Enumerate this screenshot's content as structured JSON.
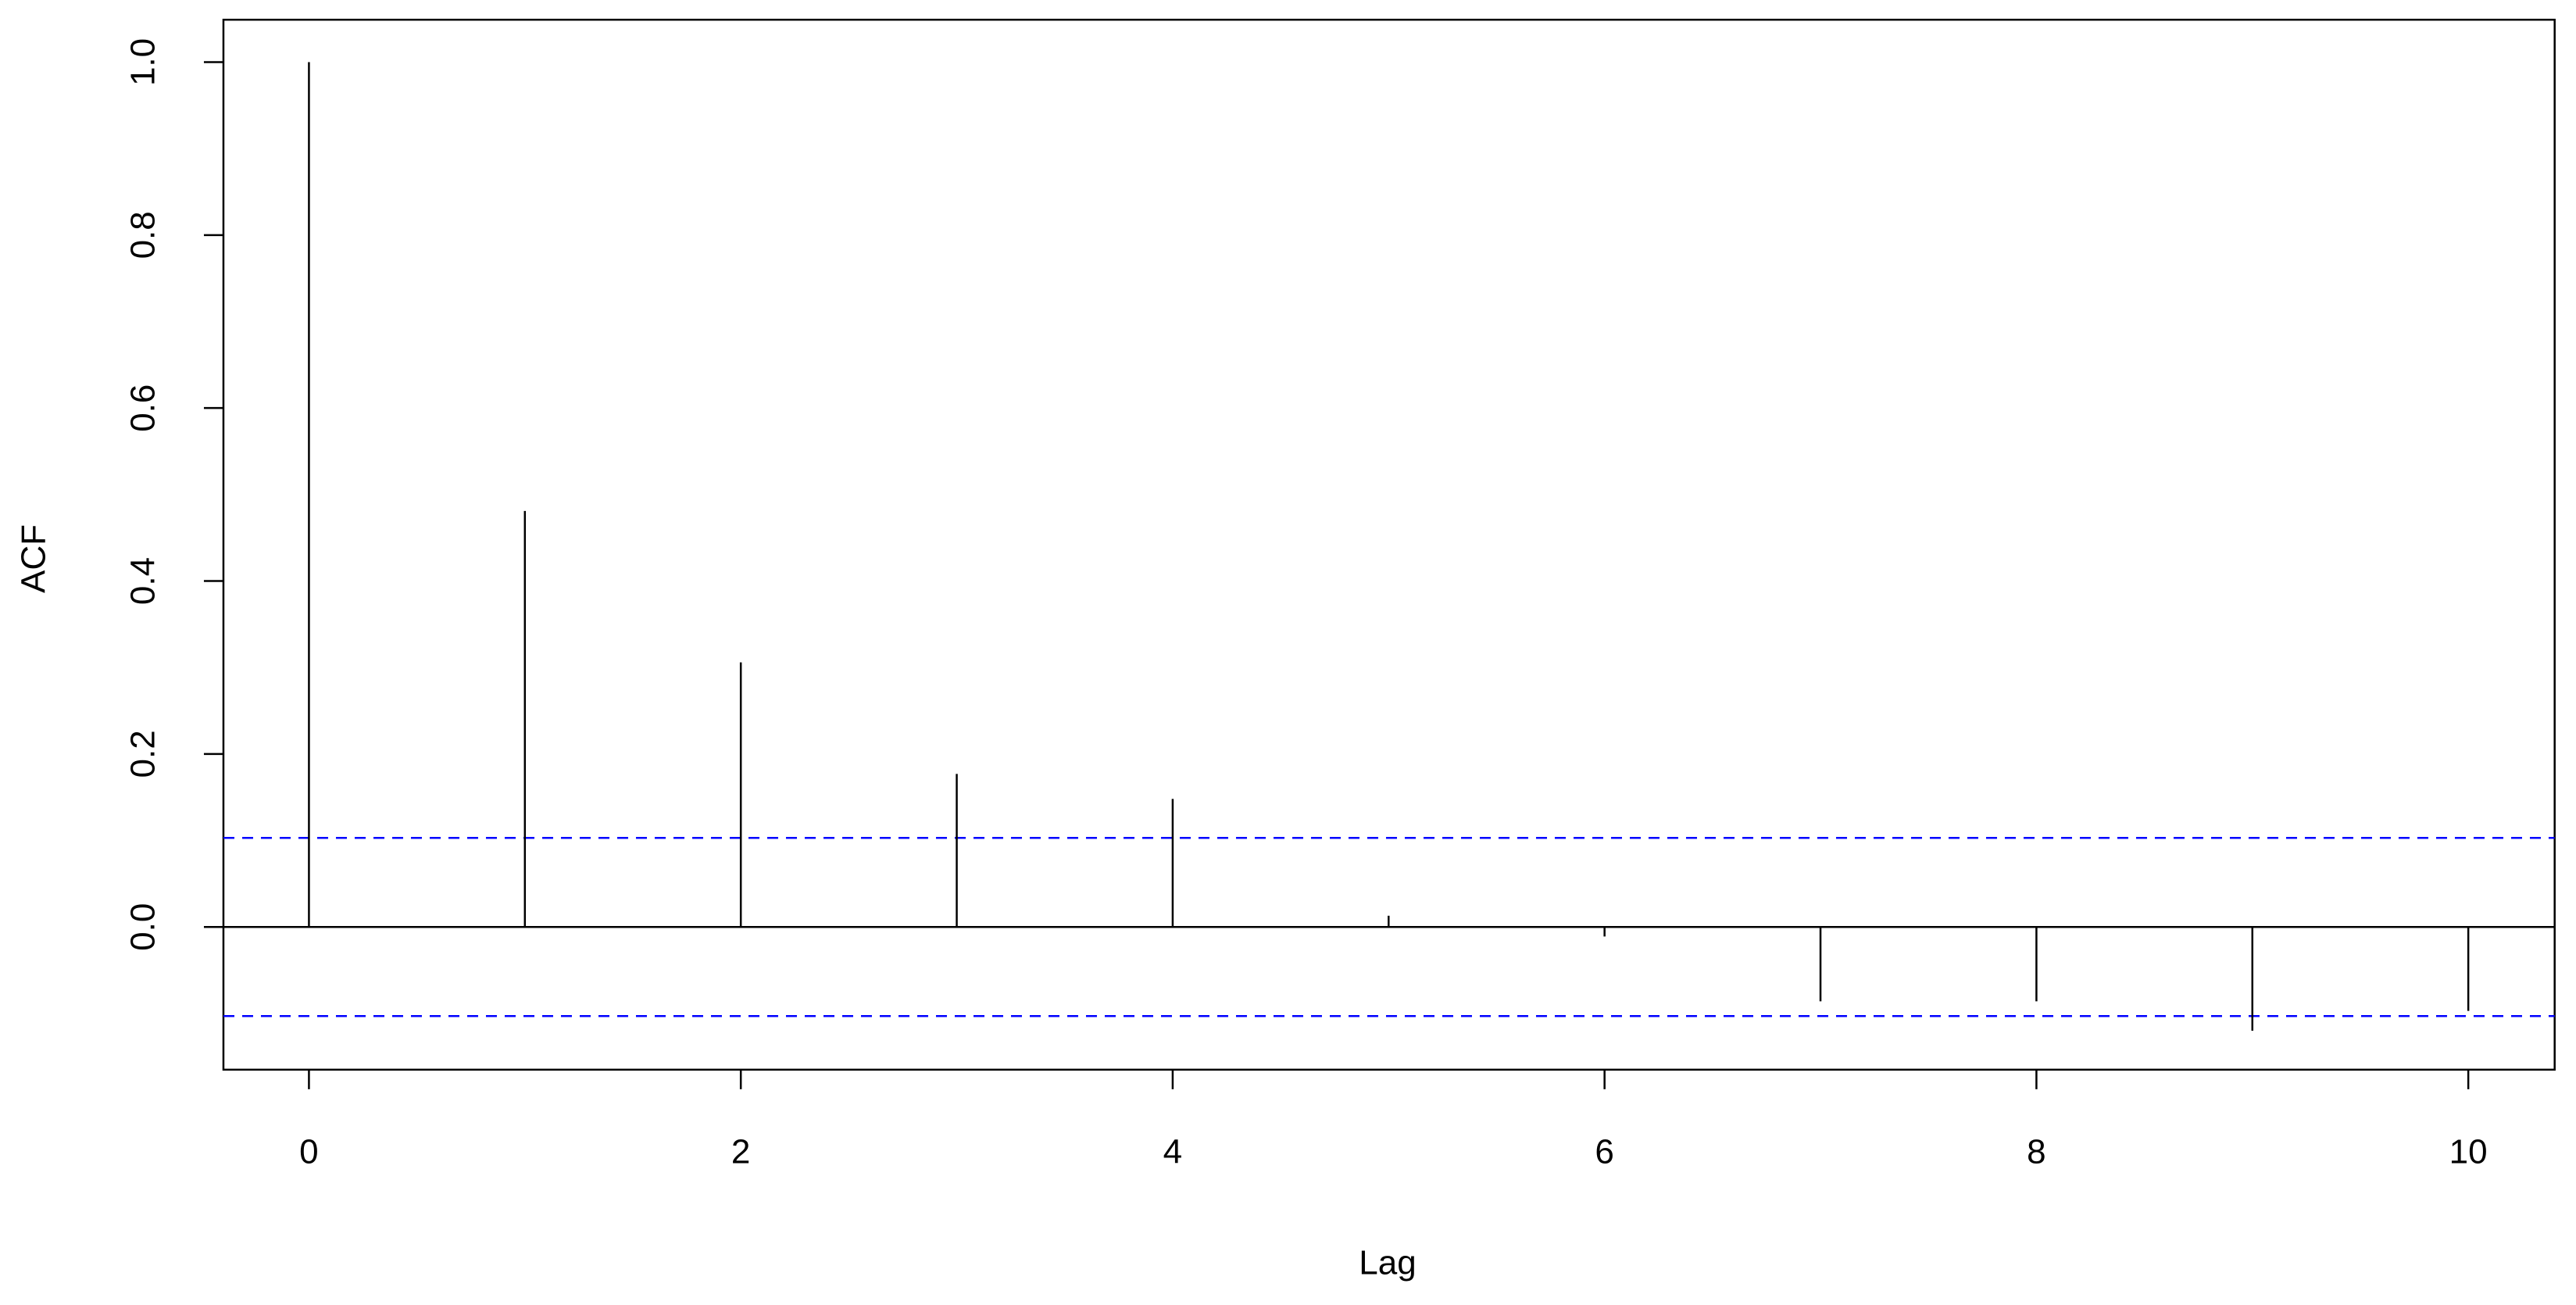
{
  "chart_data": {
    "type": "acf",
    "x_label": "Lag",
    "y_label": "ACF",
    "x": [
      0,
      1,
      2,
      3,
      4,
      5,
      6,
      7,
      8,
      9,
      10
    ],
    "values": [
      1.0,
      0.481,
      0.306,
      0.177,
      0.148,
      0.013,
      -0.011,
      -0.086,
      -0.086,
      -0.12,
      -0.097
    ],
    "color": "#000000",
    "ci_lines": [
      0.103,
      -0.103
    ],
    "ci_color": "#0000ff",
    "xlim": [
      -0.396,
      10.4
    ],
    "ylim": [
      -0.165,
      1.049
    ],
    "xticks": [
      0,
      2,
      4,
      6,
      8,
      10
    ],
    "yticks": [
      {
        "value": 0,
        "label": "0.0"
      },
      0.2,
      0.4,
      0.6,
      0.8,
      {
        "value": 1,
        "label": "1.0"
      }
    ]
  }
}
